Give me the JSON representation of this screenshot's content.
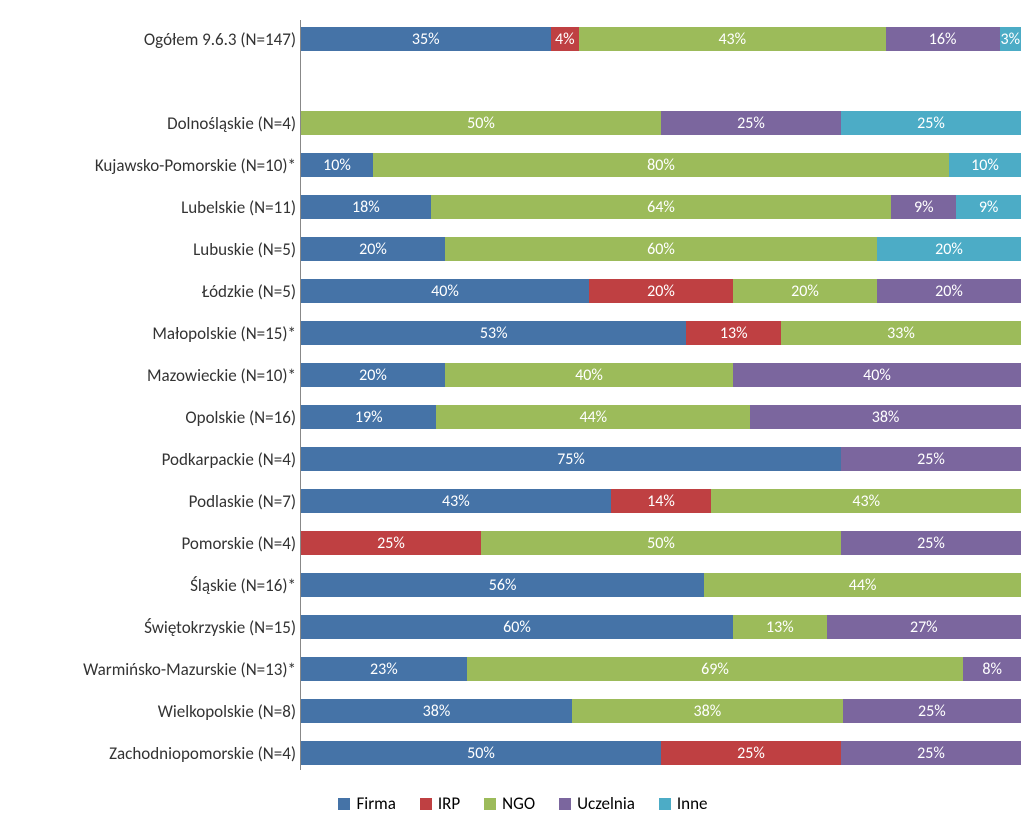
{
  "chart": {
    "type": "stacked-bar-horizontal",
    "background_color": "#ffffff",
    "label_fontsize": 17,
    "value_fontsize": 16,
    "legend_fontsize": 17,
    "axis_color": "#888888",
    "series": [
      {
        "key": "firma",
        "label": "Firma",
        "color": "#4573a7"
      },
      {
        "key": "irp",
        "label": "IRP",
        "color": "#bf4042"
      },
      {
        "key": "ngo",
        "label": "NGO",
        "color": "#9cbb5a"
      },
      {
        "key": "uczelnia",
        "label": "Uczelnia",
        "color": "#7b669e"
      },
      {
        "key": "inne",
        "label": "Inne",
        "color": "#4cacc6"
      }
    ],
    "rows": [
      {
        "label": "Ogółem 9.6.3 (N=147)",
        "gap_after": true,
        "values": {
          "firma": 35,
          "irp": 4,
          "ngo": 43,
          "uczelnia": 16,
          "inne": 3
        }
      },
      {
        "label": "Dolnośląskie (N=4)",
        "gap_after": false,
        "values": {
          "firma": 0,
          "irp": 0,
          "ngo": 50,
          "uczelnia": 25,
          "inne": 25
        }
      },
      {
        "label": "Kujawsko-Pomorskie (N=10)*",
        "gap_after": false,
        "values": {
          "firma": 10,
          "irp": 0,
          "ngo": 80,
          "uczelnia": 0,
          "inne": 10
        }
      },
      {
        "label": "Lubelskie (N=11)",
        "gap_after": false,
        "values": {
          "firma": 18,
          "irp": 0,
          "ngo": 64,
          "uczelnia": 9,
          "inne": 9
        }
      },
      {
        "label": "Lubuskie (N=5)",
        "gap_after": false,
        "values": {
          "firma": 20,
          "irp": 0,
          "ngo": 60,
          "uczelnia": 0,
          "inne": 20
        }
      },
      {
        "label": "Łódzkie (N=5)",
        "gap_after": false,
        "values": {
          "firma": 40,
          "irp": 20,
          "ngo": 20,
          "uczelnia": 20,
          "inne": 0
        }
      },
      {
        "label": "Małopolskie (N=15)*",
        "gap_after": false,
        "values": {
          "firma": 53,
          "irp": 13,
          "ngo": 33,
          "uczelnia": 0,
          "inne": 0
        }
      },
      {
        "label": "Mazowieckie (N=10)*",
        "gap_after": false,
        "values": {
          "firma": 20,
          "irp": 0,
          "ngo": 40,
          "uczelnia": 40,
          "inne": 0
        }
      },
      {
        "label": "Opolskie (N=16)",
        "gap_after": false,
        "values": {
          "firma": 19,
          "irp": 0,
          "ngo": 44,
          "uczelnia": 38,
          "inne": 0
        }
      },
      {
        "label": "Podkarpackie (N=4)",
        "gap_after": false,
        "values": {
          "firma": 75,
          "irp": 0,
          "ngo": 0,
          "uczelnia": 25,
          "inne": 0
        }
      },
      {
        "label": "Podlaskie (N=7)",
        "gap_after": false,
        "values": {
          "firma": 43,
          "irp": 14,
          "ngo": 43,
          "uczelnia": 0,
          "inne": 0
        }
      },
      {
        "label": "Pomorskie (N=4)",
        "gap_after": false,
        "values": {
          "firma": 0,
          "irp": 25,
          "ngo": 50,
          "uczelnia": 25,
          "inne": 0
        }
      },
      {
        "label": "Śląskie (N=16)*",
        "gap_after": false,
        "values": {
          "firma": 56,
          "irp": 0,
          "ngo": 44,
          "uczelnia": 0,
          "inne": 0
        }
      },
      {
        "label": "Świętokrzyskie (N=15)",
        "gap_after": false,
        "values": {
          "firma": 60,
          "irp": 0,
          "ngo": 13,
          "uczelnia": 27,
          "inne": 0
        }
      },
      {
        "label": "Warmińsko-Mazurskie (N=13)*",
        "gap_after": false,
        "values": {
          "firma": 23,
          "irp": 0,
          "ngo": 69,
          "uczelnia": 8,
          "inne": 0
        }
      },
      {
        "label": "Wielkopolskie (N=8)",
        "gap_after": false,
        "values": {
          "firma": 38,
          "irp": 0,
          "ngo": 38,
          "uczelnia": 25,
          "inne": 0
        }
      },
      {
        "label": "Zachodniopomorskie (N=4)",
        "gap_after": false,
        "values": {
          "firma": 50,
          "irp": 25,
          "ngo": 0,
          "uczelnia": 25,
          "inne": 0
        }
      }
    ]
  }
}
